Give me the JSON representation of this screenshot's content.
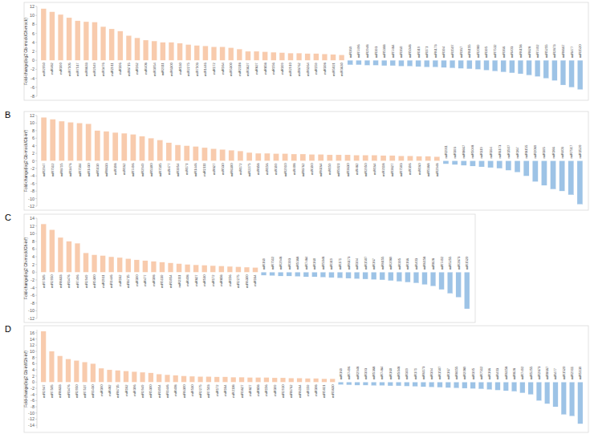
{
  "chart_data": [
    {
      "type": "bar",
      "y_label": "Fold-change(log2 Gb-mock/Gh-mock)",
      "ylim": [
        -8,
        12
      ],
      "yticks": [
        -8,
        -6,
        -4,
        -2,
        0,
        2,
        4,
        6,
        8,
        10,
        12
      ],
      "categories": [
        "miR2950",
        "miR482",
        "miR390",
        "miR7505",
        "miR7517",
        "miR8633",
        "miR2949",
        "miR3476",
        "miR2911",
        "miR396",
        "miR8715",
        "miR162",
        "miR408",
        "miR3954",
        "miR2111",
        "miR6300",
        "miR530",
        "miR2275",
        "miR7503",
        "miR1446",
        "miR172",
        "miR164",
        "miR5300",
        "miR2118",
        "miR3627",
        "miR827",
        "miR858",
        "miR156",
        "miR399",
        "miR2910",
        "miR8762",
        "miR6164",
        "miR159",
        "miR398",
        "miR5021",
        "miR3630",
        "miR169",
        "miR7496",
        "miR2948",
        "miR393",
        "miR5368",
        "miR7484",
        "miR160",
        "miR5048",
        "miR319",
        "miR171",
        "miR6173",
        "miR394",
        "miR1507",
        "miR167",
        "miR8155",
        "miR2089",
        "miR395",
        "miR7512",
        "miR166",
        "miR403",
        "miR6158",
        "miR828",
        "miR7492",
        "miR5255",
        "miR2873",
        "miR8667",
        "miR477",
        "miR1520"
      ],
      "values": [
        11.5,
        10.8,
        10.2,
        9.5,
        8.8,
        8.6,
        8.5,
        7.5,
        7,
        6.5,
        5.5,
        5,
        4.5,
        4.3,
        4,
        4,
        3.8,
        3.5,
        3.3,
        3.2,
        3,
        3,
        2.8,
        2.5,
        2,
        2,
        1.9,
        1.8,
        1.7,
        1.6,
        1.6,
        1.5,
        1.5,
        1.4,
        1.3,
        1.2,
        -1,
        -1,
        -1.1,
        -1.1,
        -1.2,
        -1.2,
        -1.3,
        -1.3,
        -1.4,
        -1.5,
        -1.5,
        -1.6,
        -1.7,
        -1.8,
        -1.9,
        -2,
        -2.2,
        -2.4,
        -2.6,
        -2.8,
        -3,
        -3.3,
        -3.6,
        -4,
        -4.5,
        -5.5,
        -6,
        -6.5
      ],
      "colors": [
        "#f8cbad",
        "#f8cbad",
        "#f8cbad",
        "#f8cbad",
        "#f8cbad",
        "#f8cbad",
        "#f8cbad",
        "#f8cbad",
        "#f8cbad",
        "#f8cbad",
        "#f8cbad",
        "#f8cbad",
        "#f8cbad",
        "#f8cbad",
        "#f8cbad",
        "#f8cbad",
        "#f8cbad",
        "#f8cbad",
        "#f8cbad",
        "#f8cbad",
        "#f8cbad",
        "#f8cbad",
        "#f8cbad",
        "#f8cbad",
        "#f8cbad",
        "#f8cbad",
        "#f8cbad",
        "#f8cbad",
        "#f8cbad",
        "#f8cbad",
        "#f8cbad",
        "#f8cbad",
        "#f8cbad",
        "#f8cbad",
        "#f8cbad",
        "#f8cbad",
        "#9dc3e6",
        "#9dc3e6",
        "#9dc3e6",
        "#9dc3e6",
        "#9dc3e6",
        "#9dc3e6",
        "#9dc3e6",
        "#9dc3e6",
        "#9dc3e6",
        "#9dc3e6",
        "#9dc3e6",
        "#9dc3e6",
        "#9dc3e6",
        "#9dc3e6",
        "#9dc3e6",
        "#9dc3e6",
        "#9dc3e6",
        "#9dc3e6",
        "#9dc3e6",
        "#9dc3e6",
        "#9dc3e6",
        "#9dc3e6",
        "#9dc3e6",
        "#9dc3e6",
        "#9dc3e6",
        "#9dc3e6",
        "#9dc3e6",
        "#9dc3e6"
      ]
    },
    {
      "type": "bar",
      "title": "B",
      "y_label": "Fold-change(log2 Gb-mock/Gb-inf)",
      "ylim": [
        -12,
        12
      ],
      "yticks": [
        -12,
        -10,
        -8,
        -6,
        -4,
        -2,
        0,
        2,
        4,
        6,
        8,
        10,
        12
      ],
      "categories": [
        "miR2947",
        "miR7512",
        "miR8715",
        "miR3476",
        "miR7504",
        "miR1430",
        "miR5139",
        "miR8633",
        "miR398",
        "miR162",
        "miR7496",
        "miR2949",
        "miR5300",
        "miR7505",
        "miR477",
        "miR3954",
        "miR171",
        "miR1446",
        "miR2111",
        "miR827",
        "miR530",
        "miR6300",
        "miR172",
        "miR2275",
        "miR858",
        "miR156",
        "miR399",
        "miR2910",
        "miR408",
        "miR8762",
        "miR390",
        "miR6164",
        "miR159",
        "miR5021",
        "miR3630",
        "miR482",
        "miR2950",
        "miR164",
        "miR2118",
        "miR3627",
        "miR7503",
        "miR396",
        "miR160",
        "miR5368",
        "miR2948",
        "miR2911",
        "miR393",
        "miR8667",
        "miR5048",
        "miR319",
        "miR394",
        "miR6173",
        "miR1507",
        "miR167",
        "miR8155",
        "miR2089",
        "miR395",
        "miR166",
        "miR403",
        "miR7517",
        "miR1520"
      ],
      "values": [
        11.5,
        11,
        10.5,
        10.2,
        10,
        9.8,
        8,
        7.8,
        7.5,
        7.3,
        7,
        6.5,
        6,
        5.5,
        4.8,
        4.2,
        4,
        3.8,
        3.5,
        3.2,
        3,
        2.8,
        2.6,
        2.2,
        2,
        2,
        1.9,
        1.9,
        1.8,
        1.8,
        1.7,
        1.7,
        1.6,
        1.6,
        1.6,
        1.5,
        1.5,
        1.5,
        1.4,
        1.4,
        1.3,
        1.3,
        1.2,
        1.2,
        1.1,
        -0.8,
        -1,
        -1.2,
        -1.4,
        -1.6,
        -1.8,
        -2,
        -2.5,
        -3,
        -4,
        -5.5,
        -6.5,
        -7.5,
        -8,
        -9,
        -11.5
      ],
      "colors": [
        "#f8cbad",
        "#f8cbad",
        "#f8cbad",
        "#f8cbad",
        "#f8cbad",
        "#f8cbad",
        "#f8cbad",
        "#f8cbad",
        "#f8cbad",
        "#f8cbad",
        "#f8cbad",
        "#f8cbad",
        "#f8cbad",
        "#f8cbad",
        "#f8cbad",
        "#f8cbad",
        "#f8cbad",
        "#f8cbad",
        "#f8cbad",
        "#f8cbad",
        "#f8cbad",
        "#f8cbad",
        "#f8cbad",
        "#f8cbad",
        "#f8cbad",
        "#f8cbad",
        "#f8cbad",
        "#f8cbad",
        "#f8cbad",
        "#f8cbad",
        "#f8cbad",
        "#f8cbad",
        "#f8cbad",
        "#f8cbad",
        "#f8cbad",
        "#f8cbad",
        "#f8cbad",
        "#f8cbad",
        "#f8cbad",
        "#f8cbad",
        "#f8cbad",
        "#f8cbad",
        "#f8cbad",
        "#f8cbad",
        "#f8cbad",
        "#9dc3e6",
        "#9dc3e6",
        "#9dc3e6",
        "#9dc3e6",
        "#9dc3e6",
        "#9dc3e6",
        "#9dc3e6",
        "#9dc3e6",
        "#9dc3e6",
        "#9dc3e6",
        "#9dc3e6",
        "#9dc3e6",
        "#9dc3e6",
        "#9dc3e6",
        "#9dc3e6",
        "#9dc3e6"
      ]
    },
    {
      "type": "bar",
      "title": "C",
      "y_label": "Fold-change(log2 Gh-mock/Gh-inf)",
      "ylim": [
        -12,
        14
      ],
      "yticks": [
        -12,
        -10,
        -8,
        -6,
        -4,
        -2,
        0,
        2,
        4,
        6,
        8,
        10,
        12,
        14
      ],
      "categories": [
        "miR7505",
        "miR2950",
        "miR8633",
        "miR3476",
        "miR7496",
        "miR2949",
        "miR5300",
        "miR2911",
        "miR1446",
        "miR162",
        "miR8715",
        "miR390",
        "miR477",
        "miR398",
        "miR5139",
        "miR3954",
        "miR2111",
        "miR408",
        "miR827",
        "miR530",
        "miR172",
        "miR858",
        "miR156",
        "miR2275",
        "miR6300",
        "miR164",
        "miR169",
        "miR7512",
        "miR2948",
        "miR393",
        "miR5368",
        "miR7484",
        "miR160",
        "miR5048",
        "miR319",
        "miR171",
        "miR6173",
        "miR394",
        "miR1507",
        "miR167",
        "miR8155",
        "miR2089",
        "miR395",
        "miR166",
        "miR403",
        "miR6158",
        "miR828",
        "miR7492",
        "miR5255",
        "miR2873",
        "miR1520"
      ],
      "values": [
        12.5,
        11,
        9,
        8,
        7.5,
        5,
        4.5,
        4.3,
        4,
        3.8,
        3.5,
        3.2,
        3,
        2.8,
        2.6,
        2.4,
        2.2,
        2,
        1.9,
        1.8,
        1.7,
        1.6,
        1.5,
        1.4,
        1.3,
        1.2,
        -0.8,
        -0.9,
        -1,
        -1,
        -1.1,
        -1.2,
        -1.2,
        -1.3,
        -1.4,
        -1.5,
        -1.6,
        -1.7,
        -1.8,
        -1.9,
        -2,
        -2.2,
        -2.4,
        -2.6,
        -2.8,
        -3.2,
        -3.6,
        -4.5,
        -5.5,
        -6.5,
        -9.5
      ],
      "colors": [
        "#f8cbad",
        "#f8cbad",
        "#f8cbad",
        "#f8cbad",
        "#f8cbad",
        "#f8cbad",
        "#f8cbad",
        "#f8cbad",
        "#f8cbad",
        "#f8cbad",
        "#f8cbad",
        "#f8cbad",
        "#f8cbad",
        "#f8cbad",
        "#f8cbad",
        "#f8cbad",
        "#f8cbad",
        "#f8cbad",
        "#f8cbad",
        "#f8cbad",
        "#f8cbad",
        "#f8cbad",
        "#f8cbad",
        "#f8cbad",
        "#f8cbad",
        "#f8cbad",
        "#9dc3e6",
        "#9dc3e6",
        "#9dc3e6",
        "#9dc3e6",
        "#9dc3e6",
        "#9dc3e6",
        "#9dc3e6",
        "#9dc3e6",
        "#9dc3e6",
        "#9dc3e6",
        "#9dc3e6",
        "#9dc3e6",
        "#9dc3e6",
        "#9dc3e6",
        "#9dc3e6",
        "#9dc3e6",
        "#9dc3e6",
        "#9dc3e6",
        "#9dc3e6",
        "#9dc3e6",
        "#9dc3e6",
        "#9dc3e6",
        "#9dc3e6",
        "#9dc3e6",
        "#9dc3e6"
      ]
    },
    {
      "type": "bar",
      "title": "D",
      "y_label": "Fold-change(log2 Gb-inf/Gh-inf)",
      "ylim": [
        -15,
        17
      ],
      "yticks": [
        -14,
        -12,
        -10,
        -8,
        -6,
        -4,
        -2,
        0,
        2,
        4,
        6,
        8,
        10,
        12,
        14,
        16
      ],
      "categories": [
        "miR2947",
        "miR7505",
        "miR8633",
        "miR3476",
        "miR2950",
        "miR7517",
        "miR1430",
        "miR390",
        "miR482",
        "miR8715",
        "miR162",
        "miR396",
        "miR2949",
        "miR5300",
        "miR3954",
        "miR1446",
        "miR408",
        "miR6300",
        "miR530",
        "miR2275",
        "miR7503",
        "miR172",
        "miR164",
        "miR2118",
        "miR3627",
        "miR827",
        "miR858",
        "miR156",
        "miR399",
        "miR2910",
        "miR8762",
        "miR6164",
        "miR159",
        "miR398",
        "miR5021",
        "miR3630",
        "miR169",
        "miR7496",
        "miR2948",
        "miR393",
        "miR5368",
        "miR7484",
        "miR160",
        "miR5048",
        "miR319",
        "miR171",
        "miR6173",
        "miR394",
        "miR1507",
        "miR167",
        "miR8155",
        "miR2089",
        "miR395",
        "miR7512",
        "miR166",
        "miR403",
        "miR6158",
        "miR828",
        "miR7492",
        "miR5255",
        "miR2873",
        "miR8667",
        "miR477",
        "miR1520",
        "miR2911",
        "miR5139"
      ],
      "values": [
        16.5,
        10,
        8.5,
        7.5,
        7,
        6.5,
        6,
        4.5,
        4,
        3.8,
        3.6,
        3.4,
        3.2,
        3,
        2.6,
        2.4,
        2.2,
        2,
        1.9,
        1.8,
        1.8,
        1.7,
        1.7,
        1.6,
        1.6,
        1.5,
        1.5,
        1.5,
        1.4,
        1.4,
        1.3,
        1.3,
        1.2,
        1.2,
        1.1,
        1.1,
        -0.8,
        -0.9,
        -1,
        -1,
        -1.1,
        -1.1,
        -1.2,
        -1.2,
        -1.3,
        -1.4,
        -1.5,
        -1.6,
        -1.7,
        -1.8,
        -1.9,
        -2,
        -2.1,
        -2.2,
        -2.4,
        -2.6,
        -2.8,
        -3,
        -3.5,
        -4,
        -6,
        -7,
        -8,
        -10.5,
        -11,
        -13.5
      ],
      "colors": [
        "#f8cbad",
        "#f8cbad",
        "#f8cbad",
        "#f8cbad",
        "#f8cbad",
        "#f8cbad",
        "#f8cbad",
        "#f8cbad",
        "#f8cbad",
        "#f8cbad",
        "#f8cbad",
        "#f8cbad",
        "#f8cbad",
        "#f8cbad",
        "#f8cbad",
        "#f8cbad",
        "#f8cbad",
        "#f8cbad",
        "#f8cbad",
        "#f8cbad",
        "#f8cbad",
        "#f8cbad",
        "#f8cbad",
        "#f8cbad",
        "#f8cbad",
        "#f8cbad",
        "#f8cbad",
        "#f8cbad",
        "#f8cbad",
        "#f8cbad",
        "#f8cbad",
        "#f8cbad",
        "#f8cbad",
        "#f8cbad",
        "#f8cbad",
        "#f8cbad",
        "#9dc3e6",
        "#9dc3e6",
        "#9dc3e6",
        "#9dc3e6",
        "#9dc3e6",
        "#9dc3e6",
        "#9dc3e6",
        "#9dc3e6",
        "#9dc3e6",
        "#9dc3e6",
        "#9dc3e6",
        "#9dc3e6",
        "#9dc3e6",
        "#9dc3e6",
        "#9dc3e6",
        "#9dc3e6",
        "#9dc3e6",
        "#9dc3e6",
        "#9dc3e6",
        "#9dc3e6",
        "#9dc3e6",
        "#9dc3e6",
        "#9dc3e6",
        "#9dc3e6",
        "#9dc3e6",
        "#9dc3e6",
        "#9dc3e6",
        "#9dc3e6",
        "#9dc3e6",
        "#9dc3e6"
      ]
    }
  ]
}
